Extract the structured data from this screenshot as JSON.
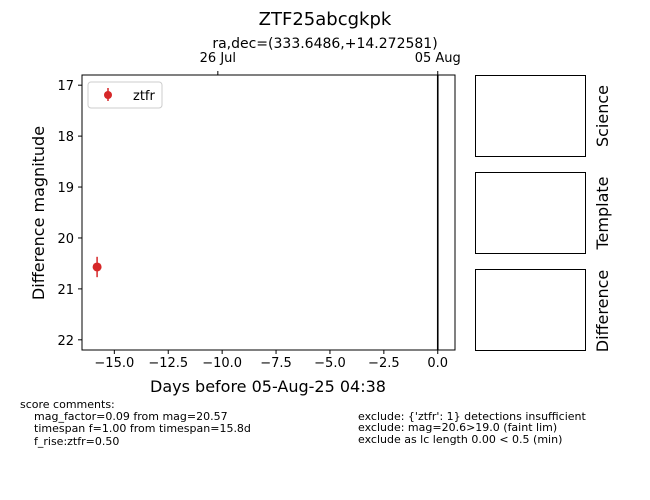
{
  "figure": {
    "title": "ZTF25abcgkpk",
    "coords_label": "ra,dec=(333.6486,+14.272581)"
  },
  "chart_data": {
    "type": "scatter",
    "title": "ZTF25abcgkpk",
    "xlabel": "Days before 05-Aug-25 04:38",
    "ylabel": "Difference magnitude",
    "xlim": [
      -16.5,
      0.8
    ],
    "ylim": [
      22.2,
      16.8
    ],
    "y_inverted": true,
    "x_ticks": [
      -15.0,
      -12.5,
      -10.0,
      -7.5,
      -5.0,
      -2.5,
      0.0
    ],
    "x_tick_labels": [
      "−15.0",
      "−12.5",
      "−10.0",
      "−7.5",
      "−5.0",
      "−2.5",
      "0.0"
    ],
    "y_ticks": [
      17,
      18,
      19,
      20,
      21,
      22
    ],
    "y_tick_labels": [
      "17",
      "18",
      "19",
      "20",
      "21",
      "22"
    ],
    "top_axis_ticks": [
      {
        "x": -10.2,
        "label": "26 Jul"
      },
      {
        "x": 0.0,
        "label": "05 Aug"
      }
    ],
    "reference_line_x": 0.0,
    "grid": false,
    "legend_position": "top-left",
    "series": [
      {
        "name": "ztfr",
        "color": "#d62728",
        "points": [
          {
            "x": -15.8,
            "y": 20.57,
            "yerr": 0.2
          }
        ]
      }
    ]
  },
  "panels": {
    "science_label": "Science",
    "template_label": "Template",
    "difference_label": "Difference"
  },
  "comments": {
    "heading": "score comments:",
    "left_lines": [
      "mag_factor=0.09 from mag=20.57",
      "timespan f=1.00 from timespan=15.8d",
      "f_rise:ztfr=0.50"
    ],
    "right_lines": [
      "exclude: {'ztfr': 1} detections insufficient",
      "exclude: mag=20.6>19.0 (faint lim)",
      "exclude as lc length 0.00 < 0.5 (min)"
    ]
  }
}
